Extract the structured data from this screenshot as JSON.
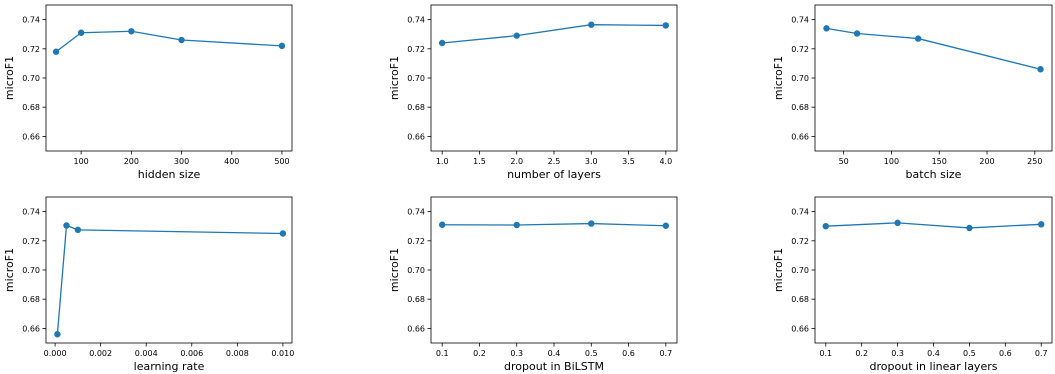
{
  "colors": {
    "series": "#1f77b4",
    "axis": "#000000",
    "background": "#ffffff"
  },
  "chart_data": [
    {
      "type": "line",
      "xlabel": "hidden size",
      "ylabel": "microF1",
      "x": [
        50,
        100,
        200,
        300,
        500
      ],
      "y": [
        0.718,
        0.731,
        0.732,
        0.726,
        0.722
      ],
      "xlim": [
        30,
        520
      ],
      "ylim": [
        0.65,
        0.75
      ],
      "xticks": [
        100,
        200,
        300,
        400,
        500
      ],
      "xtick_labels": [
        "100",
        "200",
        "300",
        "400",
        "500"
      ],
      "yticks": [
        0.66,
        0.68,
        0.7,
        0.72,
        0.74
      ],
      "ytick_labels": [
        "0.66",
        "0.68",
        "0.70",
        "0.72",
        "0.74"
      ],
      "grid": false
    },
    {
      "type": "line",
      "xlabel": "number of layers",
      "ylabel": "microF1",
      "x": [
        1,
        2,
        3,
        4
      ],
      "y": [
        0.724,
        0.729,
        0.7365,
        0.736
      ],
      "xlim": [
        0.85,
        4.15
      ],
      "ylim": [
        0.65,
        0.75
      ],
      "xticks": [
        1.0,
        1.5,
        2.0,
        2.5,
        3.0,
        3.5,
        4.0
      ],
      "xtick_labels": [
        "1.0",
        "1.5",
        "2.0",
        "2.5",
        "3.0",
        "3.5",
        "4.0"
      ],
      "yticks": [
        0.66,
        0.68,
        0.7,
        0.72,
        0.74
      ],
      "ytick_labels": [
        "0.66",
        "0.68",
        "0.70",
        "0.72",
        "0.74"
      ],
      "grid": false
    },
    {
      "type": "line",
      "xlabel": "batch size",
      "ylabel": "microF1",
      "x": [
        32,
        64,
        128,
        256
      ],
      "y": [
        0.734,
        0.7305,
        0.727,
        0.706
      ],
      "xlim": [
        20,
        268
      ],
      "ylim": [
        0.65,
        0.75
      ],
      "xticks": [
        50,
        100,
        150,
        200,
        250
      ],
      "xtick_labels": [
        "50",
        "100",
        "150",
        "200",
        "250"
      ],
      "yticks": [
        0.66,
        0.68,
        0.7,
        0.72,
        0.74
      ],
      "ytick_labels": [
        "0.66",
        "0.68",
        "0.70",
        "0.72",
        "0.74"
      ],
      "grid": false
    },
    {
      "type": "line",
      "xlabel": "learning rate",
      "ylabel": "microF1",
      "x": [
        0.0001,
        0.0005,
        0.001,
        0.01
      ],
      "y": [
        0.656,
        0.7305,
        0.7275,
        0.725
      ],
      "xlim": [
        -0.0004,
        0.0104
      ],
      "ylim": [
        0.65,
        0.75
      ],
      "xticks": [
        0.0,
        0.002,
        0.004,
        0.006,
        0.008,
        0.01
      ],
      "xtick_labels": [
        "0.000",
        "0.002",
        "0.004",
        "0.006",
        "0.008",
        "0.010"
      ],
      "yticks": [
        0.66,
        0.68,
        0.7,
        0.72,
        0.74
      ],
      "ytick_labels": [
        "0.66",
        "0.68",
        "0.70",
        "0.72",
        "0.74"
      ],
      "grid": false
    },
    {
      "type": "line",
      "xlabel": "dropout in BiLSTM",
      "ylabel": "microF1",
      "x": [
        0.1,
        0.3,
        0.5,
        0.7
      ],
      "y": [
        0.731,
        0.7308,
        0.7318,
        0.7303
      ],
      "xlim": [
        0.07,
        0.73
      ],
      "ylim": [
        0.65,
        0.75
      ],
      "xticks": [
        0.1,
        0.2,
        0.3,
        0.4,
        0.5,
        0.6,
        0.7
      ],
      "xtick_labels": [
        "0.1",
        "0.2",
        "0.3",
        "0.4",
        "0.5",
        "0.6",
        "0.7"
      ],
      "yticks": [
        0.66,
        0.68,
        0.7,
        0.72,
        0.74
      ],
      "ytick_labels": [
        "0.66",
        "0.68",
        "0.70",
        "0.72",
        "0.74"
      ],
      "grid": false
    },
    {
      "type": "line",
      "xlabel": "dropout in linear layers",
      "ylabel": "microF1",
      "x": [
        0.1,
        0.3,
        0.5,
        0.7
      ],
      "y": [
        0.73,
        0.7323,
        0.7288,
        0.7313
      ],
      "xlim": [
        0.07,
        0.73
      ],
      "ylim": [
        0.65,
        0.75
      ],
      "xticks": [
        0.1,
        0.2,
        0.3,
        0.4,
        0.5,
        0.6,
        0.7
      ],
      "xtick_labels": [
        "0.1",
        "0.2",
        "0.3",
        "0.4",
        "0.5",
        "0.6",
        "0.7"
      ],
      "yticks": [
        0.66,
        0.68,
        0.7,
        0.72,
        0.74
      ],
      "ytick_labels": [
        "0.66",
        "0.68",
        "0.70",
        "0.72",
        "0.74"
      ],
      "grid": false
    }
  ]
}
